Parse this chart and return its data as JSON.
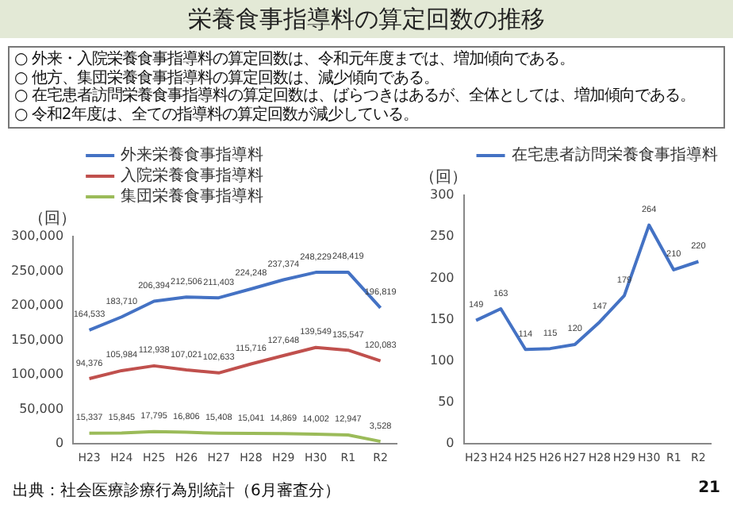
{
  "chart_data": [
    {
      "type": "line",
      "title": "栄養食事指導料の算定回数の推移",
      "annotations": [
        "○ 外来・入院栄養食事指導料の算定回数は、令和元年度までは、増加傾向である。",
        "○ 他方、集団栄養食事指導料の算定回数は、減少傾向である。",
        "○ 在宅患者訪問栄養食事指導料の算定回数は、ばらつきはあるが、全体としては、増加傾向である。",
        "○ 令和2年度は、全ての指導料の算定回数が減少している。",
        "出典：社会医療診療行為別統計（6月審査分）",
        "21"
      ],
      "ylabel": "（回）",
      "categories": [
        "H23",
        "H24",
        "H25",
        "H26",
        "H27",
        "H28",
        "H29",
        "H30",
        "R1",
        "R2"
      ],
      "series": [
        {
          "name": "外来栄養食事指導料",
          "color": "#4472c4",
          "values": [
            164533,
            183710,
            206394,
            212506,
            211403,
            224248,
            237374,
            248229,
            248419,
            196819
          ],
          "value_labels": [
            "164,533",
            "183,710",
            "206,394",
            "212,506",
            "211,403",
            "224,248",
            "237,374",
            "248,229",
            "248,419",
            "196,819"
          ]
        },
        {
          "name": "入院栄養食事指導料",
          "color": "#c0504d",
          "values": [
            94376,
            105984,
            112938,
            107021,
            102633,
            115716,
            127648,
            139549,
            135547,
            120083
          ],
          "value_labels": [
            "94,376",
            "105,984",
            "112,938",
            "107,021",
            "102,633",
            "115,716",
            "127,648",
            "139,549",
            "135,547",
            "120,083"
          ]
        },
        {
          "name": "集団栄養食事指導料",
          "color": "#9bbb59",
          "values": [
            15337,
            15845,
            17795,
            16806,
            15408,
            15041,
            14869,
            14002,
            12947,
            3528
          ],
          "value_labels": [
            "15,337",
            "15,845",
            "17,795",
            "16,806",
            "15,408",
            "15,041",
            "14,869",
            "14,002",
            "12,947",
            "3,528"
          ]
        }
      ],
      "ylim": [
        0,
        300000
      ],
      "yticks": [
        0,
        {
          "value": 50000,
          "label": "50,000"
        },
        {
          "value": 100000,
          "label": "100,000"
        },
        {
          "value": 150000,
          "label": "150,000"
        },
        {
          "value": 200000,
          "label": "200,000"
        },
        {
          "value": 250000,
          "label": "250,000"
        },
        {
          "value": 300000,
          "label": "300,000"
        }
      ],
      "grid": false,
      "legend": "top left",
      "marker": "none"
    },
    {
      "type": "line",
      "ylabel": "（回）",
      "categories": [
        "H23",
        "H24",
        "H25",
        "H26",
        "H27",
        "H28",
        "H29",
        "H30",
        "R1",
        "R2"
      ],
      "series": [
        {
          "name": "在宅患者訪問栄養食事指導料",
          "color": "#4472c4",
          "values": [
            149,
            163,
            114,
            115,
            120,
            147,
            179,
            264,
            210,
            220
          ]
        }
      ],
      "ylim": [
        0,
        300
      ],
      "yticks": [
        0,
        50,
        100,
        150,
        200,
        250,
        300
      ],
      "grid": false,
      "legend": "top left",
      "data_labels": true,
      "marker": "none"
    }
  ]
}
